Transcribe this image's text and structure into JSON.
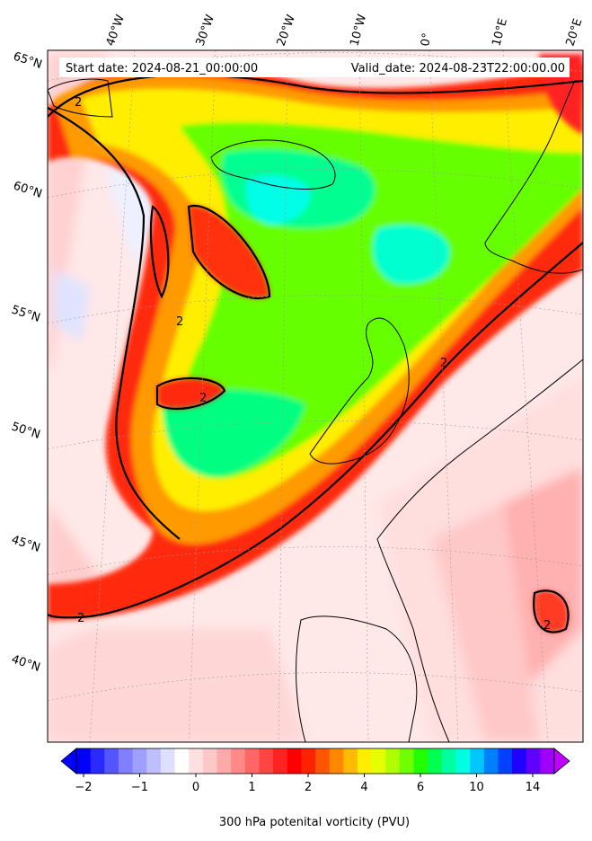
{
  "header": {
    "start_date": "Start date: 2024-08-21_00:00:00",
    "valid_date": "Valid_date: 2024-08-23T22:00:00.00"
  },
  "axes": {
    "longitude_labels": [
      "40°W",
      "30°W",
      "20°W",
      "10°W",
      "0°",
      "10°E",
      "20°E"
    ],
    "latitude_labels": [
      "65°N",
      "60°N",
      "55°N",
      "50°N",
      "45°N",
      "40°N"
    ]
  },
  "contour": {
    "level_label": "2"
  },
  "colorbar": {
    "title": "300 hPa potenital vorticity (PVU)",
    "tick_labels": [
      "−2",
      "−1",
      "0",
      "1",
      "2",
      "4",
      "6",
      "10",
      "14"
    ],
    "colors": [
      "#0000ff",
      "#2a2aff",
      "#5555ff",
      "#7f7fff",
      "#9f9fff",
      "#bfbfff",
      "#dfdfff",
      "#ffffff",
      "#ffe0e0",
      "#ffc8c8",
      "#ffaaaa",
      "#ff8888",
      "#ff6666",
      "#ff4444",
      "#ff2222",
      "#ff0000",
      "#ff2200",
      "#ff5500",
      "#ff8800",
      "#ffbb00",
      "#ffee00",
      "#e6ff00",
      "#b0ff00",
      "#70ff00",
      "#20ff00",
      "#00ff50",
      "#00ffa0",
      "#00ffe0",
      "#00c8ff",
      "#0080ff",
      "#0040ff",
      "#2000ff",
      "#6000ff",
      "#a000ff"
    ],
    "extend": "both"
  }
}
